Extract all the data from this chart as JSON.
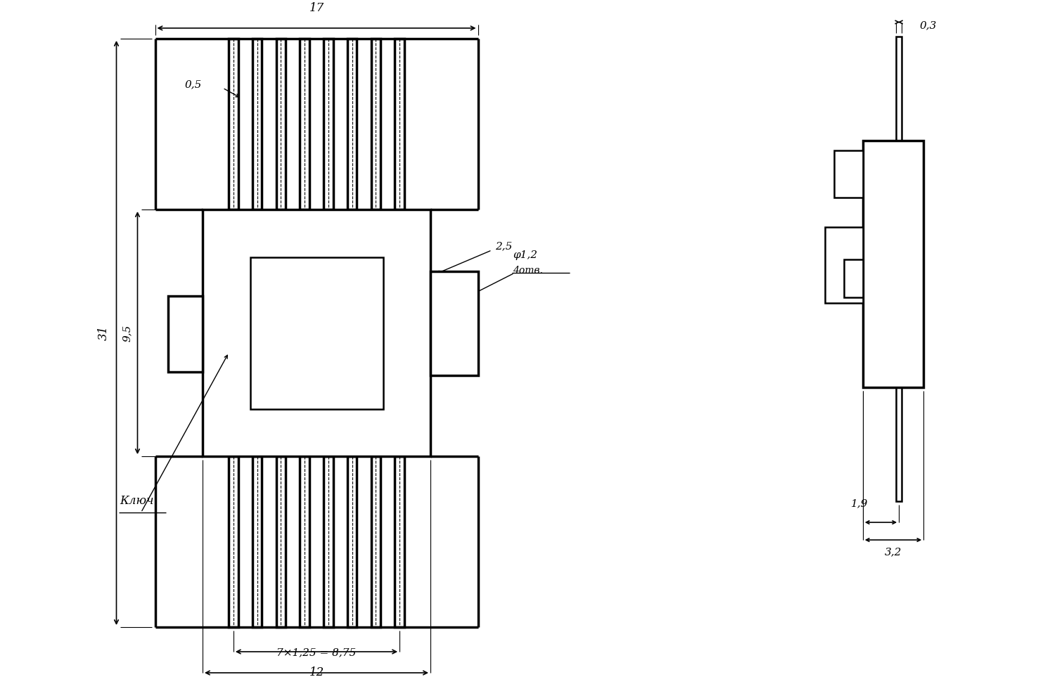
{
  "bg_color": "#ffffff",
  "line_color": "#000000",
  "lw": 1.8,
  "lw_thick": 2.5,
  "lw_thin": 0.8,
  "fig_width": 15.1,
  "fig_height": 9.9,
  "annotations": {
    "dim_17": "17",
    "dim_31": "31",
    "dim_9_5": "9,5",
    "dim_0_5": "0,5",
    "dim_2_5": "2,5",
    "dim_phi_1_2": "φ1,2",
    "dim_4otv": "4отв.",
    "dim_klyuch": "Ключ",
    "dim_7x125": "7×1,25 = 8,75",
    "dim_12": "12",
    "dim_0_3": "0,3",
    "dim_1_9": "1,9",
    "dim_3_2": "3,2"
  }
}
